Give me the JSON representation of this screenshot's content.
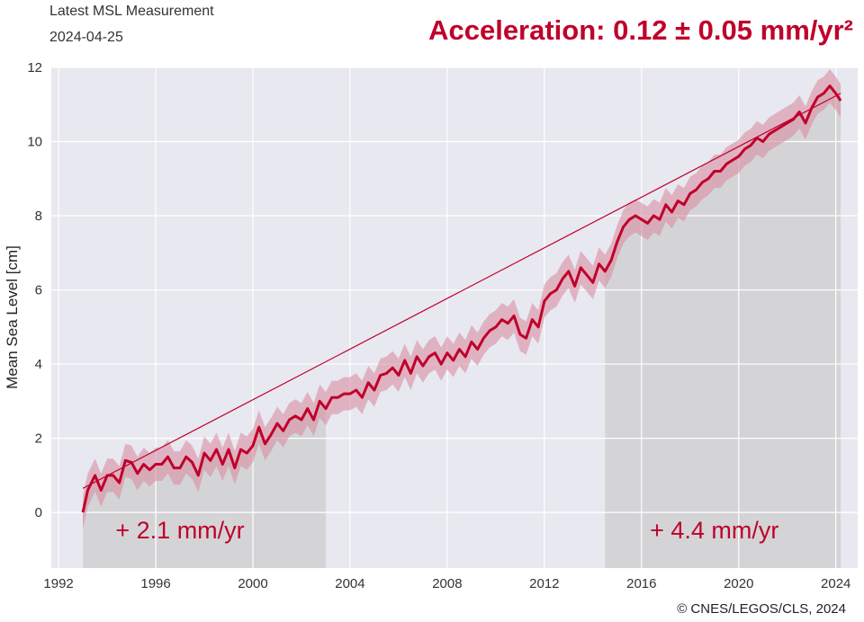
{
  "header": {
    "label": "Latest MSL Measurement",
    "date": "2024-04-25",
    "acceleration": "Acceleration: 0.12 ± 0.05 mm/yr²"
  },
  "credit": "© CNES/LEGOS/CLS, 2024",
  "colors": {
    "series": "#c0002a",
    "band": "#d98ea3",
    "background": "#e8e8f0",
    "shade": "#d2d2d4",
    "annotation": "#c0002a"
  },
  "chart_data": {
    "type": "line",
    "title": "",
    "xlabel": "",
    "ylabel": "Mean Sea Level [cm]",
    "xlim": [
      1991.7,
      2024.9
    ],
    "ylim": [
      -1.5,
      12
    ],
    "x_ticks": [
      1992,
      1996,
      2000,
      2004,
      2008,
      2012,
      2016,
      2020,
      2024
    ],
    "y_ticks": [
      0,
      2,
      4,
      6,
      8,
      10,
      12
    ],
    "grid": true,
    "series": [
      {
        "name": "Mean Sea Level",
        "uncertainty_cm": 0.45,
        "x": [
          1993.0,
          1993.2,
          1993.5,
          1993.75,
          1994.0,
          1994.25,
          1994.5,
          1994.75,
          1995.0,
          1995.25,
          1995.5,
          1995.75,
          1996.0,
          1996.25,
          1996.5,
          1996.75,
          1997.0,
          1997.25,
          1997.5,
          1997.75,
          1998.0,
          1998.25,
          1998.5,
          1998.75,
          1999.0,
          1999.25,
          1999.5,
          1999.75,
          2000.0,
          2000.25,
          2000.5,
          2000.75,
          2001.0,
          2001.25,
          2001.5,
          2001.75,
          2002.0,
          2002.25,
          2002.5,
          2002.75,
          2003.0,
          2003.25,
          2003.5,
          2003.75,
          2004.0,
          2004.25,
          2004.5,
          2004.75,
          2005.0,
          2005.25,
          2005.5,
          2005.75,
          2006.0,
          2006.25,
          2006.5,
          2006.75,
          2007.0,
          2007.25,
          2007.5,
          2007.75,
          2008.0,
          2008.25,
          2008.5,
          2008.75,
          2009.0,
          2009.25,
          2009.5,
          2009.75,
          2010.0,
          2010.25,
          2010.5,
          2010.75,
          2011.0,
          2011.25,
          2011.5,
          2011.75,
          2012.0,
          2012.25,
          2012.5,
          2012.75,
          2013.0,
          2013.25,
          2013.5,
          2013.75,
          2014.0,
          2014.25,
          2014.5,
          2014.75,
          2015.0,
          2015.25,
          2015.5,
          2015.75,
          2016.0,
          2016.25,
          2016.5,
          2016.75,
          2017.0,
          2017.25,
          2017.5,
          2017.75,
          2018.0,
          2018.25,
          2018.5,
          2018.75,
          2019.0,
          2019.25,
          2019.5,
          2019.75,
          2020.0,
          2020.25,
          2020.5,
          2020.75,
          2021.0,
          2021.25,
          2021.5,
          2021.75,
          2022.0,
          2022.25,
          2022.5,
          2022.75,
          2023.0,
          2023.25,
          2023.5,
          2023.75,
          2024.0,
          2024.1,
          2024.2
        ],
        "values": [
          0.0,
          0.6,
          1.0,
          0.6,
          1.0,
          1.0,
          0.8,
          1.4,
          1.35,
          1.05,
          1.3,
          1.15,
          1.3,
          1.3,
          1.5,
          1.2,
          1.2,
          1.5,
          1.35,
          1.0,
          1.6,
          1.4,
          1.7,
          1.3,
          1.7,
          1.2,
          1.7,
          1.6,
          1.8,
          2.3,
          1.85,
          2.1,
          2.4,
          2.2,
          2.5,
          2.6,
          2.5,
          2.8,
          2.5,
          3.0,
          2.8,
          3.1,
          3.1,
          3.2,
          3.2,
          3.3,
          3.1,
          3.5,
          3.3,
          3.7,
          3.75,
          3.9,
          3.7,
          4.1,
          3.75,
          4.2,
          3.95,
          4.2,
          4.3,
          4.0,
          4.3,
          4.1,
          4.4,
          4.2,
          4.6,
          4.4,
          4.7,
          4.9,
          5.0,
          5.2,
          5.1,
          5.3,
          4.8,
          4.7,
          5.2,
          5.0,
          5.7,
          5.9,
          6.0,
          6.3,
          6.5,
          6.1,
          6.6,
          6.4,
          6.2,
          6.7,
          6.5,
          6.8,
          7.3,
          7.7,
          7.9,
          8.0,
          7.9,
          7.8,
          8.0,
          7.9,
          8.3,
          8.1,
          8.4,
          8.3,
          8.6,
          8.7,
          8.9,
          9.0,
          9.2,
          9.2,
          9.4,
          9.5,
          9.6,
          9.8,
          9.9,
          10.1,
          10.0,
          10.2,
          10.3,
          10.4,
          10.5,
          10.6,
          10.8,
          10.5,
          10.9,
          11.2,
          11.3,
          11.5,
          11.3,
          11.2,
          11.1
        ]
      }
    ],
    "trend_line": {
      "x": [
        1993.0,
        2024.2
      ],
      "y": [
        0.65,
        11.3
      ]
    },
    "shaded_regions": [
      {
        "x_start": 1993.0,
        "x_end": 2003.0,
        "label": "+ 2.1 mm/yr",
        "label_x": 1997.0
      },
      {
        "x_start": 2014.4,
        "x_end": 2024.2,
        "label": "+ 4.4 mm/yr",
        "label_x": 2019.0
      }
    ]
  }
}
